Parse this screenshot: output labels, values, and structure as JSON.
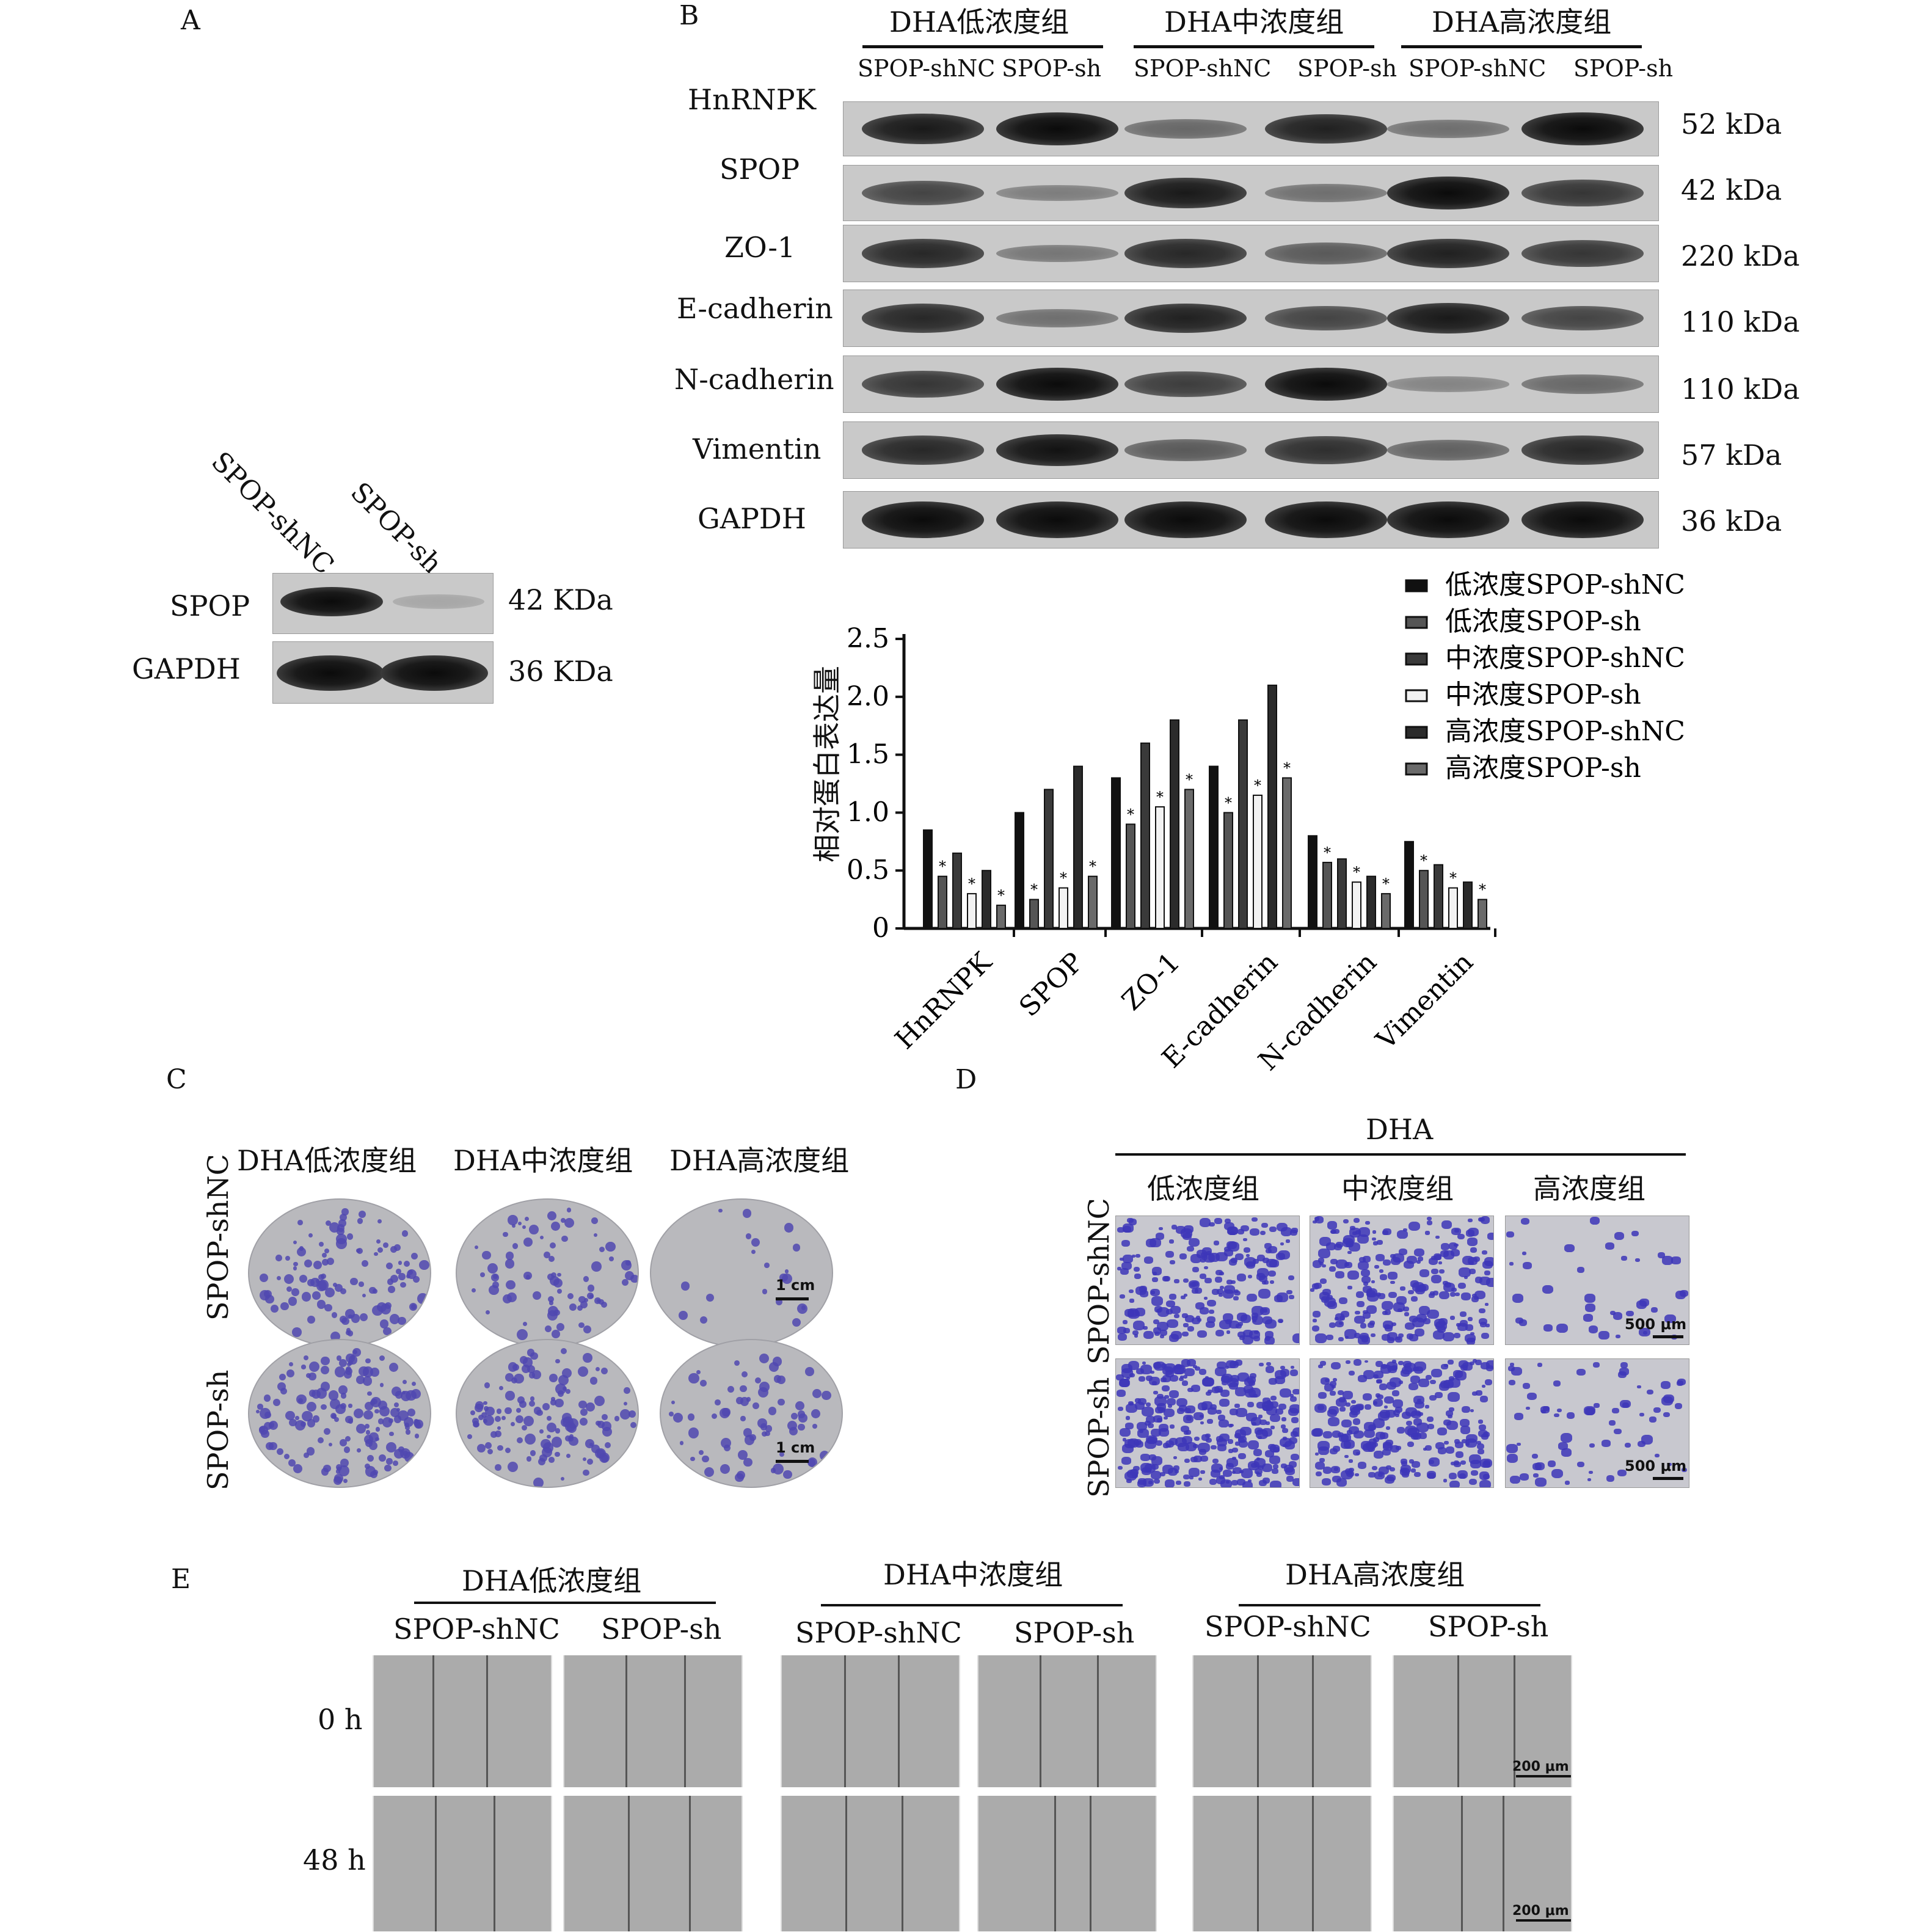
{
  "panel_labels": {
    "a": "A",
    "b": "B",
    "c": "C",
    "d": "D",
    "e": "E"
  },
  "panel_a": {
    "lanes": [
      "SPOP-shNC",
      "SPOP-sh"
    ],
    "rows": [
      {
        "label": "SPOP",
        "size": "42 KDa"
      },
      {
        "label": "GAPDH",
        "size": "36 KDa"
      }
    ]
  },
  "panel_b": {
    "groups": [
      "DHA低浓度组",
      "DHA中浓度组",
      "DHA高浓度组"
    ],
    "lanes": [
      "SPOP-shNC",
      "SPOP-sh",
      "SPOP-shNC",
      "SPOP-sh",
      "SPOP-shNC",
      "SPOP-sh"
    ],
    "rows": [
      {
        "label": "HnRNPK",
        "size": "52 kDa"
      },
      {
        "label": "SPOP",
        "size": "42 kDa"
      },
      {
        "label": "ZO-1",
        "size": "220 kDa"
      },
      {
        "label": "E-cadherin",
        "size": "110 kDa"
      },
      {
        "label": "N-cadherin",
        "size": "110 kDa"
      },
      {
        "label": "Vimentin",
        "size": "57 kDa"
      },
      {
        "label": "GAPDH",
        "size": "36 kDa"
      }
    ]
  },
  "chart_data": {
    "type": "bar",
    "ylabel": "相对蛋白表达量",
    "ylim": [
      0,
      2.5
    ],
    "yticks": [
      "0",
      "0.5",
      "1.0",
      "1.5",
      "2.0",
      "2.5"
    ],
    "categories": [
      "HnRNPK",
      "SPOP",
      "ZO-1",
      "E-cadherin",
      "N-cadherin",
      "Vimentin"
    ],
    "significance_marker": "*",
    "legend_position": "top-right",
    "series": [
      {
        "name": "低浓度SPOP-shNC",
        "values": [
          0.85,
          1.0,
          1.3,
          1.4,
          0.8,
          0.75
        ],
        "fill": "#111111"
      },
      {
        "name": "低浓度SPOP-sh",
        "values": [
          0.45,
          0.25,
          0.9,
          1.0,
          0.57,
          0.5
        ],
        "fill": "#555555"
      },
      {
        "name": "中浓度SPOP-shNC",
        "values": [
          0.65,
          1.2,
          1.6,
          1.8,
          0.6,
          0.55
        ],
        "fill": "#3a3a3a"
      },
      {
        "name": "中浓度SPOP-sh",
        "values": [
          0.3,
          0.35,
          1.05,
          1.15,
          0.4,
          0.35
        ],
        "fill": "#f2f2f2"
      },
      {
        "name": "高浓度SPOP-shNC",
        "values": [
          0.5,
          1.4,
          1.8,
          2.1,
          0.45,
          0.4
        ],
        "fill": "#2b2b2b"
      },
      {
        "name": "高浓度SPOP-sh",
        "values": [
          0.2,
          0.45,
          1.2,
          1.3,
          0.3,
          0.25
        ],
        "fill": "#6a6a6a"
      }
    ],
    "significant": [
      [
        false,
        false,
        false,
        false,
        false,
        false
      ],
      [
        true,
        true,
        true,
        true,
        true,
        true
      ],
      [
        false,
        false,
        false,
        false,
        false,
        false
      ],
      [
        true,
        true,
        true,
        true,
        true,
        true
      ],
      [
        false,
        false,
        false,
        false,
        false,
        false
      ],
      [
        true,
        true,
        true,
        true,
        true,
        true
      ]
    ]
  },
  "panel_c": {
    "columns": [
      "DHA低浓度组",
      "DHA中浓度组",
      "DHA高浓度组"
    ],
    "rows": [
      "SPOP-shNC",
      "SPOP-sh"
    ],
    "scale": "1 cm"
  },
  "panel_d": {
    "title": "DHA",
    "columns": [
      "低浓度组",
      "中浓度组",
      "高浓度组"
    ],
    "rows": [
      "SPOP-shNC",
      "SPOP-sh"
    ],
    "scale": "500 μm"
  },
  "panel_e": {
    "groups": [
      "DHA低浓度组",
      "DHA中浓度组",
      "DHA高浓度组"
    ],
    "lanes": [
      "SPOP-shNC",
      "SPOP-sh",
      "SPOP-shNC",
      "SPOP-sh",
      "SPOP-shNC",
      "SPOP-sh"
    ],
    "rows": [
      "0 h",
      "48 h"
    ],
    "scale": "200 μm"
  }
}
